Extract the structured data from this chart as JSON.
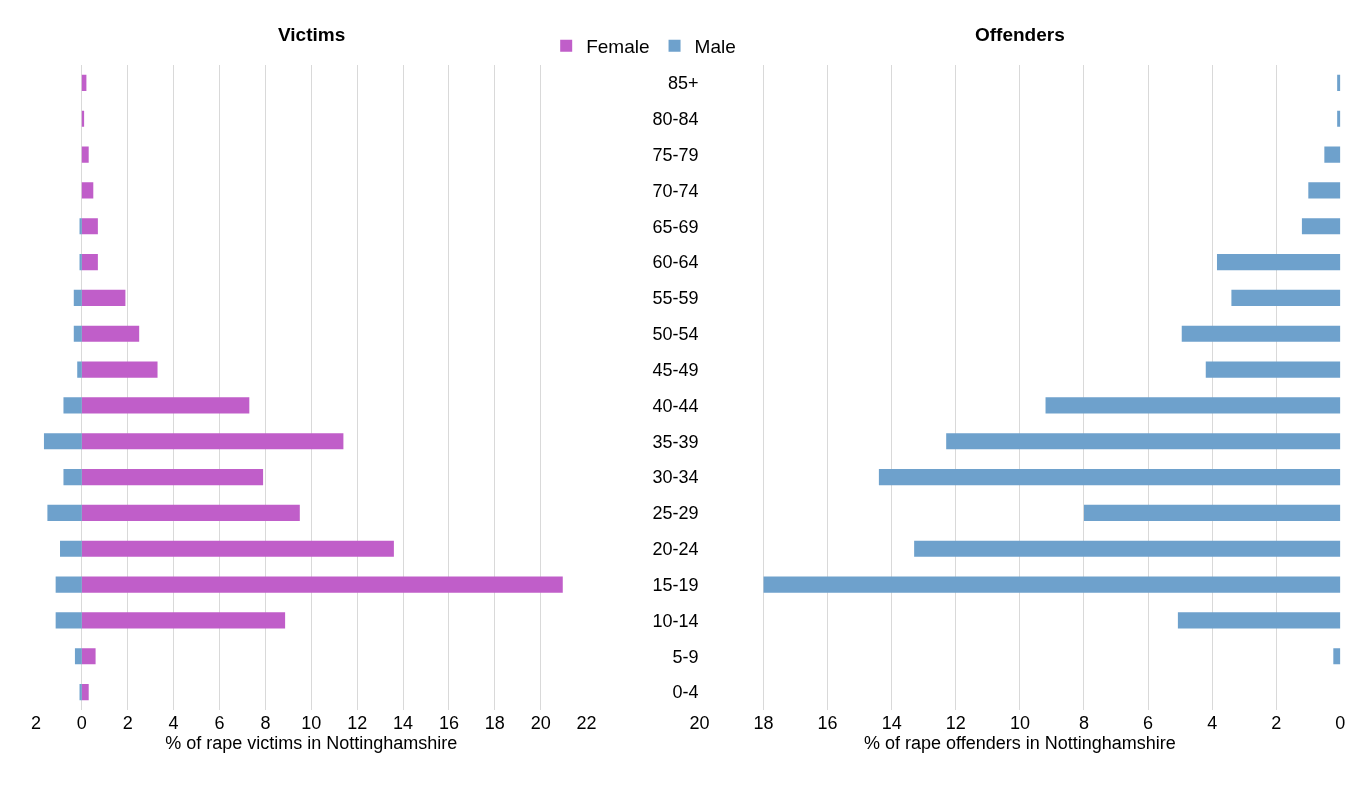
{
  "chart_data": [
    {
      "type": "bar",
      "title": "Victims",
      "orientation": "horizontal",
      "xlabel": "% of rape victims in Nottinghamshire",
      "categories": [
        null,
        null,
        null,
        null,
        null,
        null,
        null,
        null,
        null,
        null,
        null,
        null,
        null,
        null,
        null,
        null,
        null,
        null
      ],
      "series": [
        {
          "name": "Female",
          "color": "#c05ec9",
          "values": [
            0.2,
            0.1,
            0.3,
            0.5,
            0.7,
            0.7,
            1.9,
            2.5,
            3.3,
            7.3,
            11.4,
            7.9,
            9.5,
            13.6,
            20.96,
            8.86,
            0.6,
            0.3
          ]
        },
        {
          "name": "Male",
          "color": "#6ea1cc",
          "values": [
            0,
            0,
            0,
            0,
            -0.1,
            -0.1,
            -0.35,
            -0.35,
            -0.2,
            -0.8,
            -1.65,
            -0.8,
            -1.5,
            -0.95,
            -1.14,
            -1.14,
            -0.3,
            -0.1
          ]
        }
      ],
      "xlim": [
        -2,
        22
      ],
      "xticks": [
        {
          "value": -2,
          "label": "2"
        },
        0,
        2,
        4,
        6,
        8,
        10,
        12,
        14,
        16,
        18,
        20,
        22
      ],
      "grid": "x",
      "legend": "top",
      "tick_labels": "x",
      "stacked": true
    },
    {
      "type": "bar",
      "title": "Offenders",
      "orientation": "horizontal",
      "xlabel": "% of rape offenders in Nottinghamshire",
      "categories": [
        "85+",
        "80-84",
        "75-79",
        "70-74",
        "65-69",
        "60-64",
        "55-59",
        "50-54",
        "45-49",
        "40-44",
        "35-39",
        "30-34",
        "25-29",
        "20-24",
        "15-19",
        "10-14",
        "5-9",
        "0-4"
      ],
      "series": [
        {
          "color": "#6ea1cc",
          "values": [
            0.1,
            0.1,
            0.5,
            1.0,
            1.2,
            3.85,
            3.4,
            4.95,
            4.2,
            9.2,
            12.3,
            14.4,
            8.0,
            13.3,
            18.0,
            5.07,
            0.22,
            0
          ]
        }
      ],
      "xlim": [
        20,
        0
      ],
      "xticks": [
        20,
        18,
        16,
        14,
        12,
        10,
        8,
        6,
        4,
        2,
        0
      ],
      "grid": "x",
      "legend": false
    }
  ]
}
